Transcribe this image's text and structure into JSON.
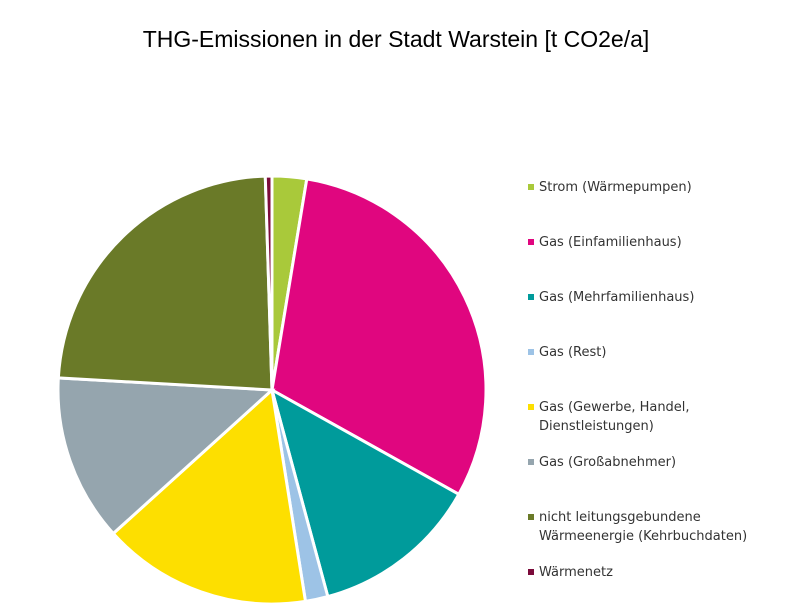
{
  "chart_data": {
    "type": "pie",
    "title": "THG-Emissionen in der Stadt Warstein [t CO2e/a]",
    "categories": [
      "Strom (Wärmepumpen)",
      "Gas (Einfamilienhaus)",
      "Gas (Mehrfamilienhaus)",
      "Gas (Rest)",
      "Gas (Gewerbe, Handel, Dienstleistungen)",
      "Gas (Großabnehmer)",
      "nicht leitungsgebundene Wärmeenergie (Kehrbuchdaten)",
      "Wärmenetz"
    ],
    "values": [
      2.6,
      30.5,
      12.7,
      1.7,
      15.8,
      12.6,
      23.6,
      0.5
    ],
    "colors": [
      "#a9c93a",
      "#e0067f",
      "#009b9b",
      "#9dc3e6",
      "#fddf00",
      "#95a5ae",
      "#6a7a28",
      "#7b0a3a"
    ],
    "legend": "right"
  }
}
